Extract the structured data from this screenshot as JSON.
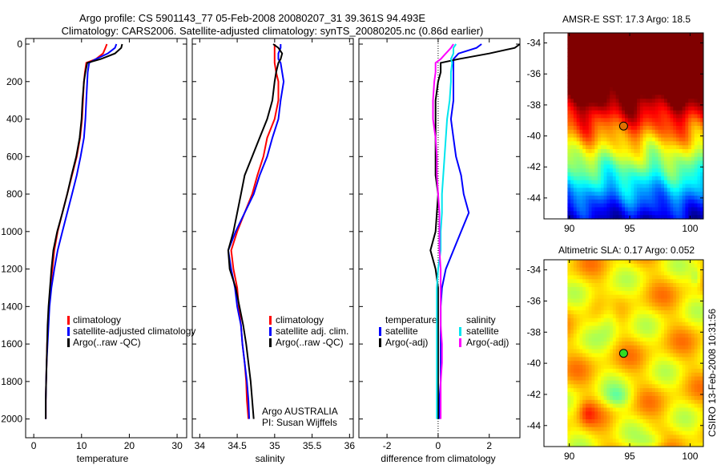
{
  "title": {
    "line1": "Argo profile: CS 5901143_77 05-Feb-2008 20080207_31 39.361S 94.493E",
    "line2": "Climatology: CARS2006. Satellite-adjusted climatology: synTS_20080205.nc (0.86d earlier)"
  },
  "colors": {
    "climatology": "#ff0000",
    "satellite": "#0000ff",
    "argo": "#000000",
    "sal_satellite": "#00e5ee",
    "sal_argo": "#ff00ff"
  },
  "chart_data": [
    {
      "type": "line",
      "name": "temperature-profile",
      "xlabel": "temperature",
      "ylabel": "",
      "xlim": [
        -1.7,
        32
      ],
      "ylim": [
        2100,
        -30
      ],
      "xticks": [
        "0",
        "10",
        "20",
        "30"
      ],
      "yticks": [
        "0",
        "200",
        "400",
        "600",
        "800",
        "1000",
        "1200",
        "1400",
        "1600",
        "1800",
        "2000"
      ],
      "depth": [
        0,
        20,
        50,
        80,
        100,
        150,
        200,
        300,
        400,
        500,
        600,
        700,
        800,
        900,
        1000,
        1100,
        1200,
        1300,
        1400,
        1500,
        1600,
        1700,
        1800,
        1900,
        2000
      ],
      "series": [
        {
          "name": "climatology",
          "color": "#ff0000",
          "values": [
            15.3,
            15.0,
            14.5,
            13,
            11.0,
            10.7,
            10.5,
            10.3,
            10.1,
            9.7,
            9.0,
            8.0,
            7.0,
            6.0,
            5.0,
            4.3,
            3.9,
            3.5,
            3.2,
            3.0,
            2.8,
            2.7,
            2.6,
            2.5,
            2.5
          ]
        },
        {
          "name": "satellite-adjusted climatology",
          "color": "#0000ff",
          "values": [
            17.3,
            17.0,
            15.5,
            13,
            11.6,
            11.3,
            11.2,
            11.0,
            10.8,
            10.5,
            9.8,
            9.0,
            8.0,
            7.0,
            6.0,
            5.0,
            4.3,
            3.7,
            3.3,
            3.1,
            2.9,
            2.7,
            2.6,
            2.5,
            2.5
          ]
        },
        {
          "name": "Argo(..raw -QC)",
          "color": "#000000",
          "values": [
            18.5,
            18.3,
            17,
            14,
            11.2,
            10.8,
            10.5,
            10.2,
            10.0,
            9.6,
            8.9,
            7.9,
            7.0,
            6.0,
            4.9,
            4.1,
            3.7,
            3.4,
            3.1,
            2.9,
            2.8,
            2.7,
            2.6,
            2.5,
            2.5
          ]
        }
      ],
      "legend": [
        "climatology",
        "satellite-adjusted climatology",
        "Argo(..raw -QC)"
      ]
    },
    {
      "type": "line",
      "name": "salinity-profile",
      "xlabel": "salinity",
      "xlim": [
        33.9,
        36.05
      ],
      "ylim": [
        2100,
        -30
      ],
      "xticks": [
        "34",
        "34.5",
        "35",
        "35.5",
        "36"
      ],
      "depth": [
        0,
        20,
        50,
        80,
        100,
        150,
        200,
        300,
        400,
        500,
        600,
        700,
        800,
        900,
        1000,
        1100,
        1200,
        1300,
        1400,
        1500,
        1600,
        1700,
        1800,
        1900,
        2000
      ],
      "series": [
        {
          "name": "climatology",
          "color": "#ff0000",
          "values": [
            35.0,
            35.0,
            35.0,
            35.0,
            35.0,
            35.02,
            35.05,
            35.05,
            35.0,
            34.9,
            34.85,
            34.77,
            34.7,
            34.6,
            34.5,
            34.42,
            34.45,
            34.5,
            34.52,
            34.55,
            34.57,
            34.6,
            34.62,
            34.63,
            34.65
          ]
        },
        {
          "name": "satellite adj. clim.",
          "color": "#0000ff",
          "values": [
            35.08,
            35.08,
            35.05,
            35.05,
            35.08,
            35.1,
            35.12,
            35.08,
            35.05,
            34.97,
            34.9,
            34.8,
            34.72,
            34.6,
            34.48,
            34.38,
            34.42,
            34.47,
            34.5,
            34.55,
            34.57,
            34.6,
            34.63,
            34.65,
            34.66
          ]
        },
        {
          "name": "Argo(..raw -QC)",
          "color": "#000000",
          "values": [
            34.98,
            35.05,
            35.1,
            35.08,
            35.05,
            35.02,
            35.0,
            34.97,
            34.9,
            34.8,
            34.7,
            34.6,
            34.55,
            34.5,
            34.45,
            34.38,
            34.4,
            34.48,
            34.53,
            34.58,
            34.62,
            34.65,
            34.68,
            34.7,
            34.72
          ]
        }
      ],
      "legend": [
        "climatology",
        "satellite adj. clim.",
        "Argo(..raw -QC)"
      ],
      "annotation": [
        "Argo AUSTRALIA",
        "PI: Susan Wijffels"
      ]
    },
    {
      "type": "line",
      "name": "difference-profile",
      "xlabel": "difference from climatology",
      "xlim": [
        -3.1,
        3.2
      ],
      "ylim": [
        2100,
        -30
      ],
      "xticks": [
        "-2",
        "0",
        "2"
      ],
      "depth": [
        0,
        20,
        50,
        80,
        100,
        150,
        200,
        300,
        400,
        500,
        600,
        700,
        800,
        900,
        1000,
        1100,
        1200,
        1300,
        1400,
        1500,
        1600,
        1700,
        1800,
        1900,
        2000
      ],
      "series": [
        {
          "name": "temperature satellite",
          "color": "#0000ff",
          "values": [
            1.7,
            1.5,
            0.8,
            0.6,
            0.6,
            0.6,
            0.6,
            0.6,
            0.5,
            0.6,
            0.7,
            0.9,
            1.0,
            1.2,
            0.9,
            0.6,
            0.3,
            0.15,
            0.1,
            0.1,
            0.1,
            0.1,
            0.1,
            0.05,
            0.05
          ]
        },
        {
          "name": "temperature Argo(-adj)",
          "color": "#000000",
          "values": [
            3.2,
            3.0,
            2.0,
            0.8,
            0.1,
            0.1,
            0.0,
            -0.1,
            -0.1,
            -0.1,
            -0.1,
            -0.1,
            0.0,
            -0.05,
            -0.1,
            -0.3,
            -0.1,
            0.0,
            0.0,
            0.0,
            0.0,
            0.0,
            0.0,
            0.0,
            0.0
          ]
        },
        {
          "name": "salinity satellite",
          "color": "#00e5ee",
          "values": [
            0.7,
            0.6,
            0.6,
            0.5,
            0.55,
            0.5,
            0.5,
            0.45,
            0.35,
            0.3,
            0.25,
            0.2,
            0.15,
            0.15,
            0.1,
            0.1,
            0.0,
            -0.05,
            -0.05,
            -0.05,
            -0.05,
            -0.05,
            -0.05,
            -0.05,
            -0.05
          ]
        },
        {
          "name": "salinity Argo(-adj)",
          "color": "#ff00ff",
          "values": [
            0.6,
            0.5,
            0.3,
            0.1,
            -0.1,
            -0.1,
            -0.15,
            -0.2,
            -0.2,
            -0.1,
            -0.05,
            -0.05,
            0.0,
            0.05,
            0.05,
            0.05,
            0.1,
            0.1,
            0.1,
            0.1,
            0.15,
            0.15,
            0.1,
            0.1,
            0.1
          ]
        }
      ],
      "legend": {
        "temperature_header": "temperature",
        "salinity_header": "salinity",
        "satellite": "satellite",
        "argo": "Argo(-adj)"
      }
    },
    {
      "type": "heatmap",
      "name": "amsr-sst-map",
      "title": "AMSR-E SST: 17.3 Argo: 18.5",
      "xlim": [
        87.9,
        101.1
      ],
      "ylim": [
        -45.35,
        -33.35
      ],
      "xticks": [
        "90",
        "95",
        "100"
      ],
      "yticks": [
        "-34",
        "-36",
        "-38",
        "-40",
        "-42",
        "-44"
      ],
      "marker": {
        "lon": 94.493,
        "lat": -39.361,
        "color": "#e07000"
      }
    },
    {
      "type": "heatmap",
      "name": "altimetric-sla-map",
      "title": "Altimetric SLA: 0.17 Argo: 0.052",
      "xlim": [
        87.9,
        101.1
      ],
      "ylim": [
        -45.35,
        -33.35
      ],
      "xticks": [
        "90",
        "95",
        "100"
      ],
      "yticks": [
        "-34",
        "-36",
        "-38",
        "-40",
        "-42",
        "-44"
      ],
      "marker": {
        "lon": 94.493,
        "lat": -39.361,
        "color": "#33dd22"
      }
    }
  ],
  "footer": {
    "credit": "CSIRO 13-Feb-2008 10:31:56"
  }
}
